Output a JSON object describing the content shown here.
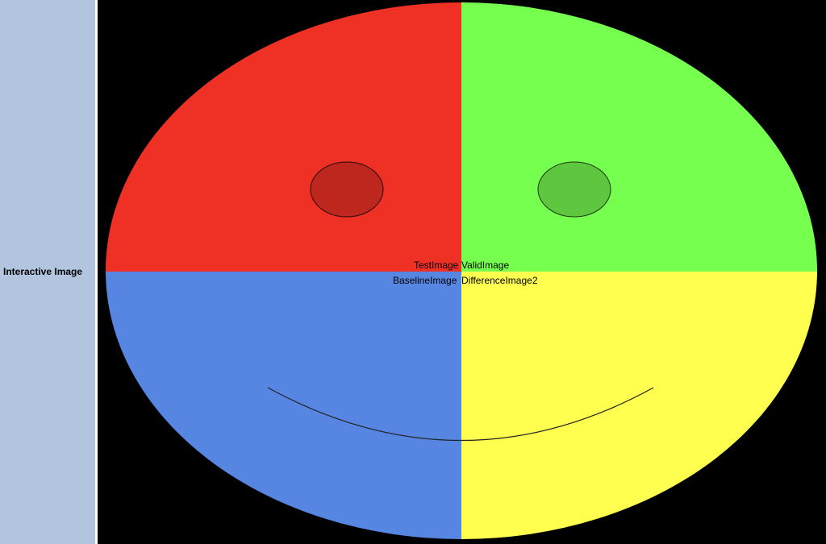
{
  "sidebar": {
    "label": "Interactive Image"
  },
  "image": {
    "labels": {
      "test": "TestImage",
      "valid": "ValidImage",
      "baseline": "BaselineImage",
      "difference": "DifferenceImage2"
    },
    "quadrant_colors": {
      "top_left": "#ee3124",
      "top_right": "#77ff50",
      "bottom_left": "#5686e2",
      "bottom_right": "#ffff50"
    },
    "eye_colors": {
      "left": "#bd271d",
      "right": "#5fc640"
    }
  }
}
